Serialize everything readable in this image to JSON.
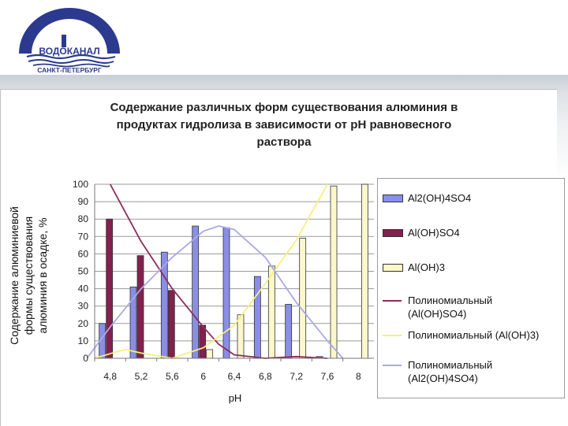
{
  "header": {
    "logo_text": "ВОДОКАНАЛ",
    "logo_subtext": "САНКТ-ПЕТЕРБУРГ"
  },
  "colors": {
    "series_a": "#8a8ee6",
    "series_b": "#84204e",
    "series_c": "#fcf8cc",
    "trend_a": "#a9a9e6",
    "trend_b": "#8c2d5a",
    "trend_c": "#f4f07c",
    "logo": "#2b3a8e"
  },
  "chart_data": {
    "type": "bar",
    "title_lines": [
      "Содержание различных форм существования алюминия в",
      "продуктах гидролиза в зависимости от pH равновесного",
      "раствора"
    ],
    "xlabel": "pH",
    "ylabel_lines": [
      "Содержание алюминиевой",
      "формы существования",
      "алюминия в осадке, %"
    ],
    "categories": [
      "4,8",
      "5,2",
      "5,6",
      "6",
      "6,4",
      "6,8",
      "7,2",
      "7,6",
      "8"
    ],
    "ylim": [
      0,
      100
    ],
    "yticks": [
      "0",
      "10",
      "20",
      "30",
      "40",
      "50",
      "60",
      "70",
      "80",
      "90",
      "100"
    ],
    "grid": "horizontal",
    "legend_position": "right",
    "series": [
      {
        "name": "Al2(OH)4SO4",
        "values": [
          20,
          41,
          61,
          76,
          75,
          47,
          31,
          1,
          0
        ]
      },
      {
        "name": "Al(OH)SO4",
        "values": [
          80,
          59,
          39,
          19,
          0,
          0,
          0,
          0,
          0
        ]
      },
      {
        "name": "Al(OH)3",
        "values": [
          0,
          0,
          0,
          5,
          25,
          53,
          69,
          99,
          100
        ]
      }
    ],
    "trendlines": [
      {
        "name": "Полиномиальный (Al(OH)SO4)",
        "points": [
          [
            4.8,
            100
          ],
          [
            5.2,
            67
          ],
          [
            5.6,
            40
          ],
          [
            6.0,
            18
          ],
          [
            6.2,
            8
          ],
          [
            6.4,
            2
          ],
          [
            6.8,
            0
          ],
          [
            7.2,
            1
          ],
          [
            7.6,
            0
          ]
        ]
      },
      {
        "name": "Полиномиальный (Al(OH)3)",
        "points": [
          [
            4.6,
            0
          ],
          [
            4.9,
            4
          ],
          [
            5.0,
            5
          ],
          [
            5.2,
            3
          ],
          [
            5.6,
            0
          ],
          [
            6.0,
            6
          ],
          [
            6.4,
            19
          ],
          [
            6.8,
            43
          ],
          [
            7.2,
            68
          ],
          [
            7.6,
            100
          ]
        ]
      },
      {
        "name": "Полиномиальный (Al2(OH)4SO4)",
        "points": [
          [
            4.5,
            0
          ],
          [
            4.8,
            18
          ],
          [
            5.2,
            40
          ],
          [
            5.6,
            58
          ],
          [
            6.0,
            73
          ],
          [
            6.2,
            76
          ],
          [
            6.4,
            74
          ],
          [
            6.8,
            58
          ],
          [
            7.2,
            32
          ],
          [
            7.6,
            10
          ],
          [
            7.8,
            0
          ]
        ]
      }
    ],
    "legend_lines": [
      [
        "Al2(OH)4SO4"
      ],
      [
        "Al(OH)SO4"
      ],
      [
        "Al(OH)3"
      ],
      [
        "Полиномиальный",
        "(Al(OH)SO4)"
      ],
      [
        "Полиномиальный (Al(OH)3)"
      ],
      [
        "Полиномиальный",
        "(Al2(OH)4SO4)"
      ]
    ]
  }
}
